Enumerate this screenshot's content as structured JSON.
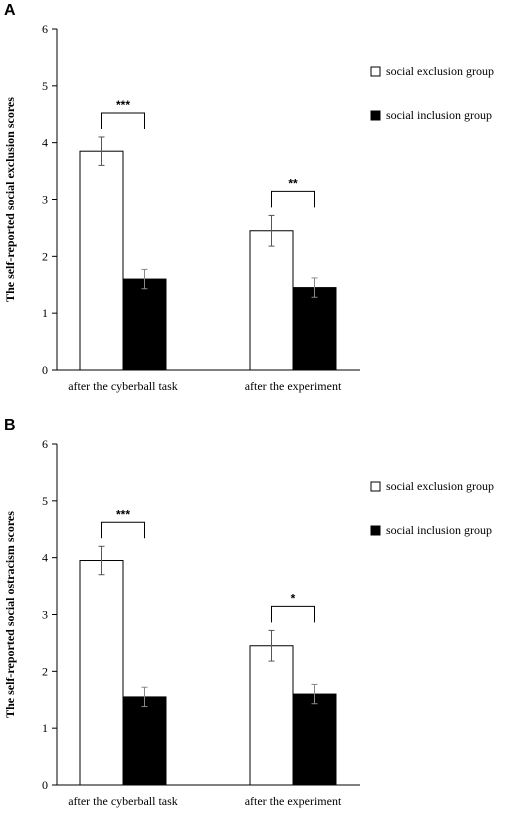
{
  "chart_data": [
    {
      "panel_label": "A",
      "type": "bar",
      "ylabel": "The self-reported social exclusion scores",
      "xlabel": "",
      "ylim": [
        0,
        6
      ],
      "yticks": [
        "0",
        "1",
        "2",
        "3",
        "4",
        "5",
        "6"
      ],
      "categories": [
        "after the cyberball task",
        "after the experiment"
      ],
      "series": [
        {
          "name": "social exclusion group",
          "values": [
            3.85,
            2.45
          ],
          "errors": [
            0.25,
            0.27
          ],
          "fill": "#ffffff",
          "stroke": "#000000"
        },
        {
          "name": "social inclusion group",
          "values": [
            1.6,
            1.45
          ],
          "errors": [
            0.17,
            0.17
          ],
          "fill": "#000000",
          "stroke": "#000000"
        }
      ],
      "significance": [
        "***",
        "**"
      ],
      "legend_position": "top-right",
      "grid": false
    },
    {
      "panel_label": "B",
      "type": "bar",
      "ylabel": "The self-reported social ostracism  scores",
      "xlabel": "",
      "ylim": [
        0,
        6
      ],
      "yticks": [
        "0",
        "1",
        "2",
        "3",
        "4",
        "5",
        "6"
      ],
      "categories": [
        "after the cyberball task",
        "after the experiment"
      ],
      "series": [
        {
          "name": "social exclusion group",
          "values": [
            3.95,
            2.45
          ],
          "errors": [
            0.25,
            0.27
          ],
          "fill": "#ffffff",
          "stroke": "#000000"
        },
        {
          "name": "social inclusion group",
          "values": [
            1.55,
            1.6
          ],
          "errors": [
            0.17,
            0.17
          ],
          "fill": "#000000",
          "stroke": "#000000"
        }
      ],
      "significance": [
        "***",
        "*"
      ],
      "legend_position": "top-right",
      "grid": false
    }
  ]
}
